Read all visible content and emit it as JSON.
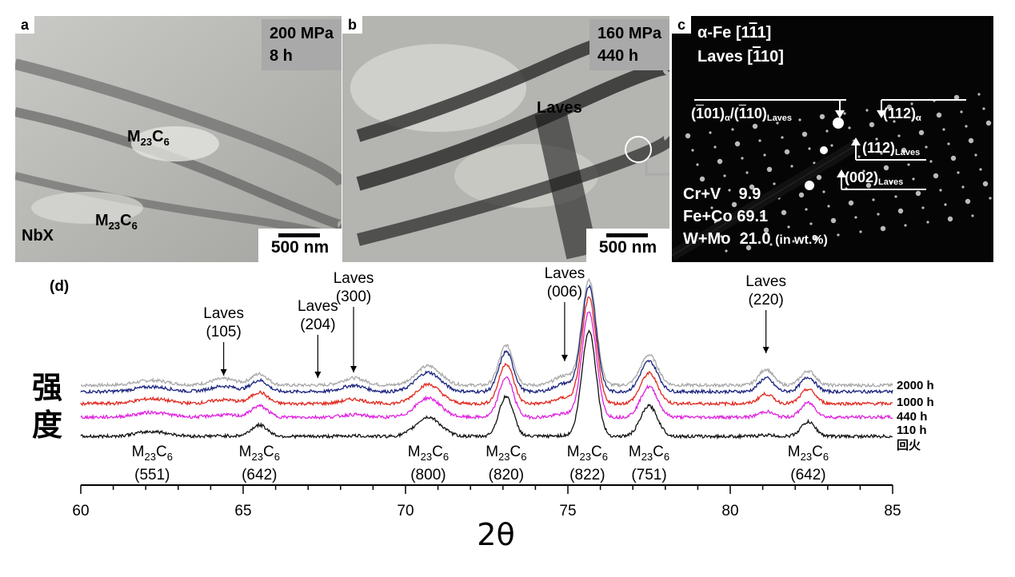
{
  "panel_a": {
    "tag": "a",
    "stress": "200 MPa",
    "time": "8 h",
    "scale_label": "500 nm",
    "phase1": "M",
    "phase1_sub": "23",
    "phase1_c": "C",
    "phase1_csub": "6",
    "phase2": "M",
    "phase2_sub": "23",
    "phase2_c": "C",
    "phase2_csub": "6",
    "nbx": "NbX"
  },
  "panel_b": {
    "tag": "b",
    "stress": "160 MPa",
    "time": "440 h",
    "scale_label": "500 nm",
    "laves": "Laves"
  },
  "panel_c": {
    "tag": "c",
    "zone1_pre": "α-Fe [1",
    "zone1_bar": "1",
    "zone1_post": "1]",
    "zone2_pre": "Laves [",
    "zone2_bar": "1",
    "zone2_post": "10]",
    "refl1_a": "(",
    "refl1_bar": "1",
    "refl1_b": "01)",
    "refl1_sub": "α",
    "refl1_c": "/(",
    "refl1_bar2": "1",
    "refl1_d": "10)",
    "refl1_sub2": "Laves",
    "refl2": "(112)",
    "refl2_sub": "α",
    "refl3": "(112)",
    "refl3_sub": "Laves",
    "refl4": "(002)",
    "refl4_sub": "Laves",
    "comp1_label": "Cr+V",
    "comp1_value": "9.9",
    "comp2_label": "Fe+Co",
    "comp2_value": "69.1",
    "comp3_label": "W+Mo",
    "comp3_value": "21.0",
    "comp_unit": "(in wt.%)"
  },
  "panel_d": {
    "tag": "(d)",
    "ylabel_1": "强",
    "ylabel_2": "度",
    "xlabel": "2θ"
  },
  "chart_data": {
    "type": "line",
    "xlabel": "2θ",
    "ylabel": "强度",
    "xlim": [
      60,
      85
    ],
    "x_ticks": [
      "60",
      "65",
      "70",
      "75",
      "80",
      "85"
    ],
    "series": [
      {
        "name": "2000 h",
        "color": "#a8a8a8"
      },
      {
        "name": "1000 h",
        "color": "#1a237e"
      },
      {
        "name": "440 h",
        "color": "#e0281e"
      },
      {
        "name": "110 h",
        "color": "#e020e0"
      },
      {
        "name": "回火",
        "color": "#111111"
      }
    ],
    "peaks": [
      {
        "x": 62.2,
        "h": 6,
        "w": 0.5
      },
      {
        "x": 65.5,
        "h": 14,
        "w": 0.25
      },
      {
        "x": 70.7,
        "h": 24,
        "w": 0.38
      },
      {
        "x": 73.1,
        "h": 50,
        "w": 0.22
      },
      {
        "x": 75.65,
        "h": 132,
        "w": 0.22
      },
      {
        "x": 77.5,
        "h": 38,
        "w": 0.26
      },
      {
        "x": 82.4,
        "h": 18,
        "w": 0.22
      }
    ],
    "laves_peaks": [
      {
        "x": 64.4,
        "h": 8,
        "w": 0.4
      },
      {
        "x": 68.4,
        "h": 9,
        "w": 0.35
      },
      {
        "x": 74.9,
        "h": 12,
        "w": 0.3
      },
      {
        "x": 81.1,
        "h": 20,
        "w": 0.22
      }
    ],
    "laves_annotations": [
      {
        "x": 64.4,
        "line1": "Laves",
        "line2": "(105)"
      },
      {
        "x": 67.3,
        "line1": "Laves",
        "line2": "(204)"
      },
      {
        "x": 68.4,
        "line1": "Laves",
        "line2": "(300)"
      },
      {
        "x": 74.9,
        "line1": "Laves",
        "line2": "(006)"
      },
      {
        "x": 81.1,
        "line1": "Laves",
        "line2": "(220)"
      }
    ],
    "m23c6_annotations": [
      {
        "x": 62.2,
        "main": "M",
        "sub": "23",
        "c": "C",
        "csub": "6",
        "hkl": "(551)"
      },
      {
        "x": 65.5,
        "main": "M",
        "sub": "23",
        "c": "C",
        "csub": "6",
        "hkl": "(642)"
      },
      {
        "x": 70.7,
        "main": "M",
        "sub": "23",
        "c": "C",
        "csub": "6",
        "hkl": "(800)"
      },
      {
        "x": 73.1,
        "main": "M",
        "sub": "23",
        "c": "C",
        "csub": "6",
        "hkl": "(820)"
      },
      {
        "x": 75.6,
        "main": "M",
        "sub": "23",
        "c": "C",
        "csub": "6",
        "hkl": "(822)"
      },
      {
        "x": 77.5,
        "main": "M",
        "sub": "23",
        "c": "C",
        "csub": "6",
        "hkl": "(751)"
      },
      {
        "x": 82.4,
        "main": "M",
        "sub": "23",
        "c": "C",
        "csub": "6",
        "hkl": "(642)"
      }
    ]
  }
}
